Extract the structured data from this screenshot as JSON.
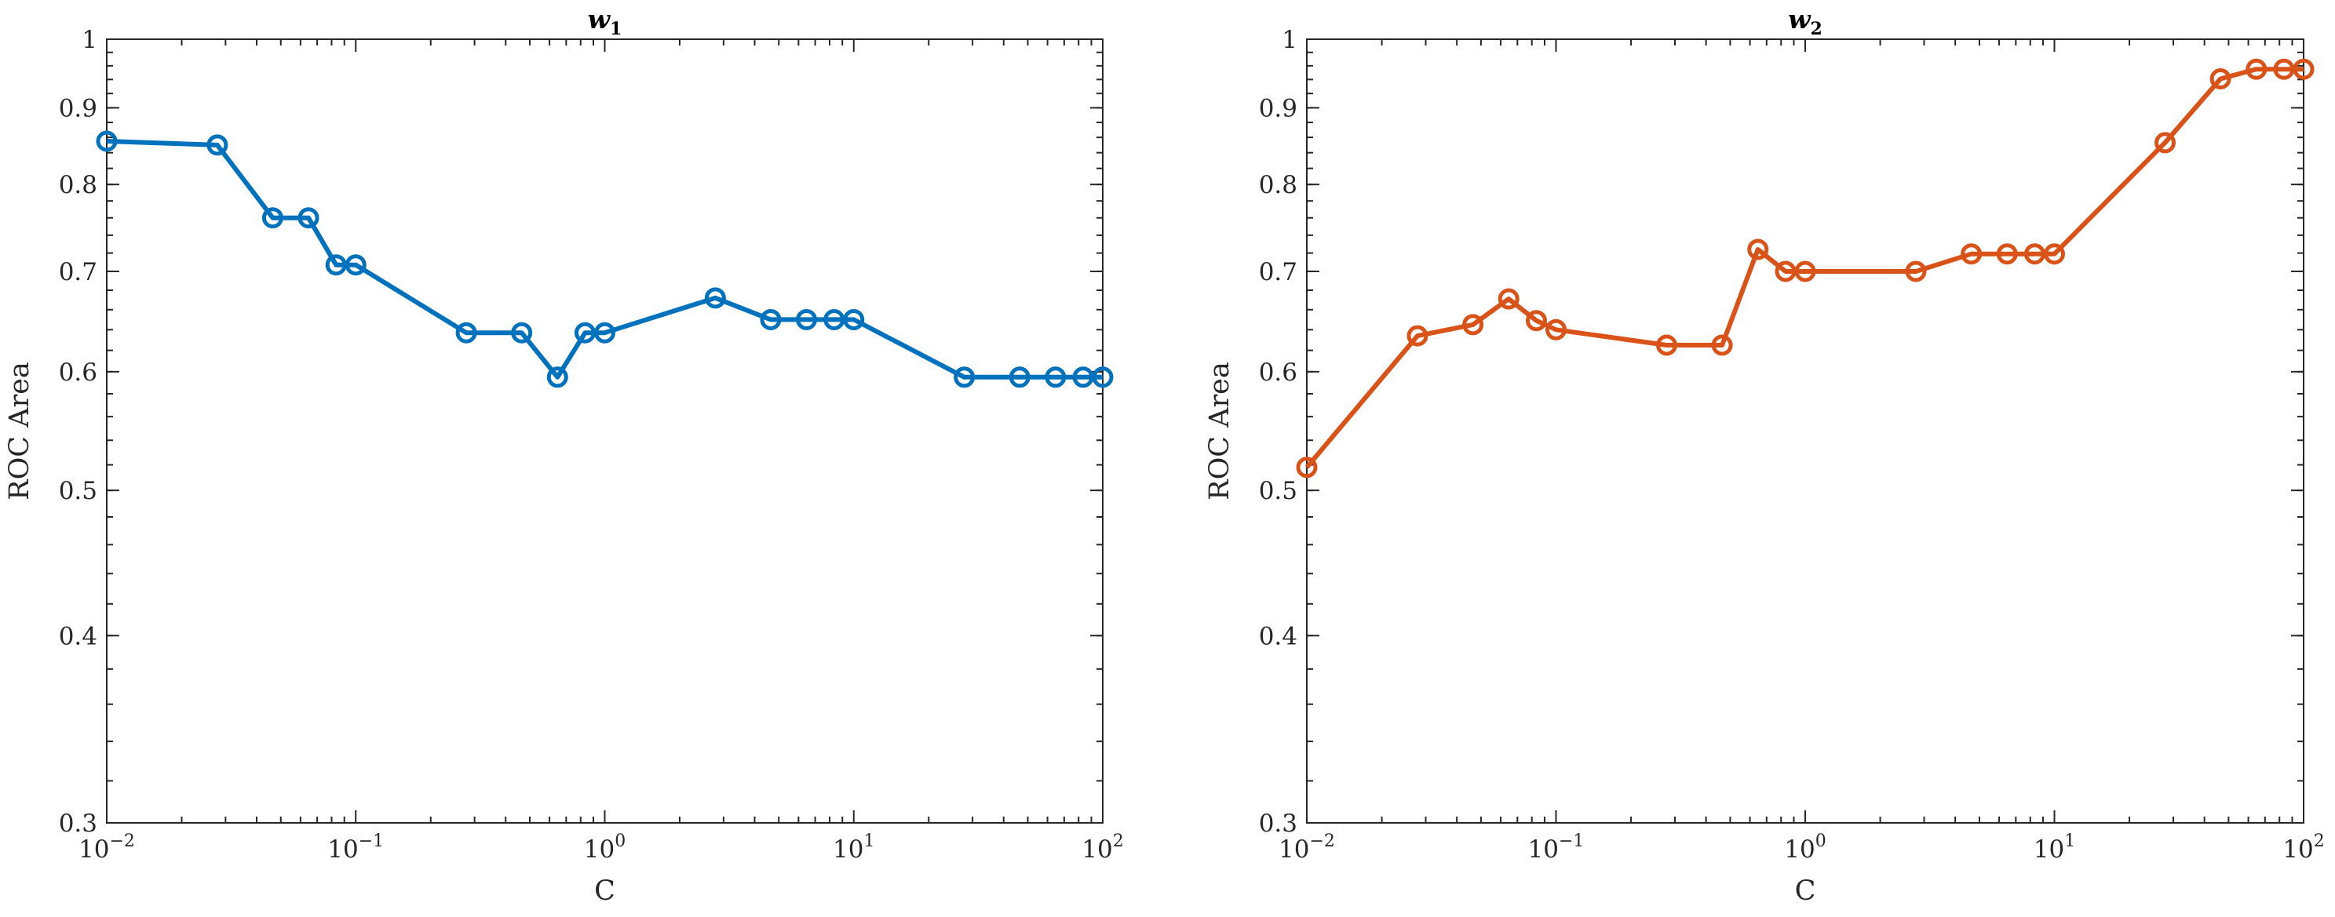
{
  "chart_data": [
    {
      "type": "line",
      "title": "w",
      "title_subscript": "1",
      "xlabel": "C",
      "ylabel": "ROC Area",
      "xscale": "log",
      "yscale": "log",
      "xlim": [
        0.01,
        100
      ],
      "ylim": [
        0.3,
        1
      ],
      "xticks": [
        {
          "value": 0.01,
          "base": "10",
          "exp": "−2"
        },
        {
          "value": 0.1,
          "base": "10",
          "exp": "−1"
        },
        {
          "value": 1,
          "base": "10",
          "exp": "0"
        },
        {
          "value": 10,
          "base": "10",
          "exp": "1"
        },
        {
          "value": 100,
          "base": "10",
          "exp": "2"
        }
      ],
      "yticks": [
        {
          "value": 0.3,
          "label": "0.3"
        },
        {
          "value": 0.4,
          "label": "0.4"
        },
        {
          "value": 0.5,
          "label": "0.5"
        },
        {
          "value": 0.6,
          "label": "0.6"
        },
        {
          "value": 0.7,
          "label": "0.7"
        },
        {
          "value": 0.8,
          "label": "0.8"
        },
        {
          "value": 0.9,
          "label": "0.9"
        },
        {
          "value": 1,
          "label": "1"
        }
      ],
      "color": "#0072BD",
      "marker": "circle",
      "grid": false,
      "series": [
        {
          "x": [
            0.01,
            0.0278,
            0.0464,
            0.0646,
            0.0834,
            0.1,
            0.278,
            0.464,
            0.646,
            0.834,
            1,
            2.78,
            4.64,
            6.46,
            8.34,
            10,
            27.8,
            46.4,
            64.6,
            83.4,
            100
          ],
          "y": [
            0.855,
            0.85,
            0.76,
            0.76,
            0.707,
            0.707,
            0.637,
            0.637,
            0.595,
            0.637,
            0.637,
            0.672,
            0.65,
            0.65,
            0.65,
            0.65,
            0.595,
            0.595,
            0.595,
            0.595,
            0.595
          ]
        }
      ]
    },
    {
      "type": "line",
      "title": "w",
      "title_subscript": "2",
      "xlabel": "C",
      "ylabel": "ROC Area",
      "xscale": "log",
      "yscale": "log",
      "xlim": [
        0.01,
        100
      ],
      "ylim": [
        0.3,
        1
      ],
      "xticks": [
        {
          "value": 0.01,
          "base": "10",
          "exp": "−2"
        },
        {
          "value": 0.1,
          "base": "10",
          "exp": "−1"
        },
        {
          "value": 1,
          "base": "10",
          "exp": "0"
        },
        {
          "value": 10,
          "base": "10",
          "exp": "1"
        },
        {
          "value": 100,
          "base": "10",
          "exp": "2"
        }
      ],
      "yticks": [
        {
          "value": 0.3,
          "label": "0.3"
        },
        {
          "value": 0.4,
          "label": "0.4"
        },
        {
          "value": 0.5,
          "label": "0.5"
        },
        {
          "value": 0.6,
          "label": "0.6"
        },
        {
          "value": 0.7,
          "label": "0.7"
        },
        {
          "value": 0.8,
          "label": "0.8"
        },
        {
          "value": 0.9,
          "label": "0.9"
        },
        {
          "value": 1,
          "label": "1"
        }
      ],
      "color": "#D95319",
      "marker": "circle",
      "grid": false,
      "series": [
        {
          "x": [
            0.01,
            0.0278,
            0.0464,
            0.0646,
            0.0834,
            0.1,
            0.278,
            0.464,
            0.646,
            0.834,
            1,
            2.78,
            4.64,
            6.46,
            8.34,
            10,
            27.8,
            46.4,
            64.6,
            83.4,
            100
          ],
          "y": [
            0.518,
            0.634,
            0.645,
            0.671,
            0.649,
            0.64,
            0.625,
            0.625,
            0.724,
            0.7,
            0.7,
            0.7,
            0.719,
            0.719,
            0.719,
            0.719,
            0.853,
            0.941,
            0.955,
            0.955,
            0.955
          ]
        }
      ]
    }
  ]
}
